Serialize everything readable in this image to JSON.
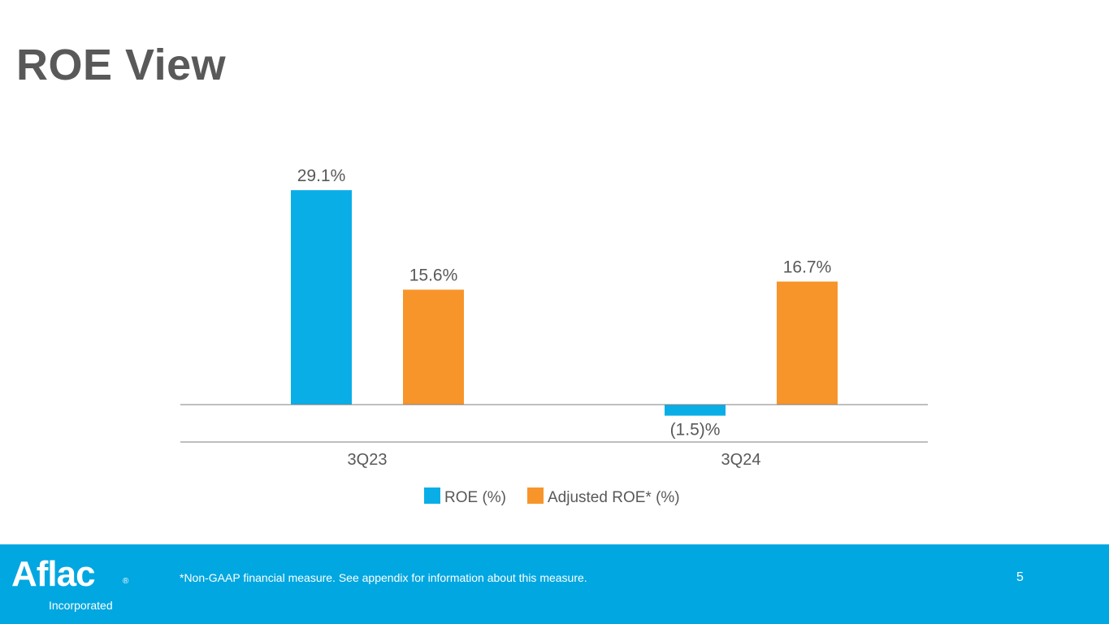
{
  "title": "ROE View",
  "chart_data": {
    "type": "bar",
    "title": "",
    "xlabel": "",
    "ylabel": "",
    "categories": [
      "3Q23",
      "3Q24"
    ],
    "series": [
      {
        "name": "ROE (%)",
        "color": "#0aaee7",
        "values": [
          29.1,
          -1.5
        ],
        "labels": [
          "29.1%",
          "(1.5)%"
        ]
      },
      {
        "name": "Adjusted ROE* (%)",
        "color": "#f7952b",
        "values": [
          15.6,
          16.7
        ],
        "labels": [
          "15.6%",
          "16.7%"
        ]
      }
    ],
    "ylim": [
      -5,
      35
    ],
    "grid": false,
    "legend_position": "bottom"
  },
  "footer": {
    "logo_text": "Aflac",
    "logo_registered": "®",
    "logo_subtitle": "Incorporated",
    "footnote": "*Non-GAAP financial measure. See appendix for information about this measure.",
    "page_number": "5"
  },
  "colors": {
    "title": "#595959",
    "footer_bg": "#00a7e1",
    "axis": "#7f7f7f",
    "label": "#595959"
  }
}
